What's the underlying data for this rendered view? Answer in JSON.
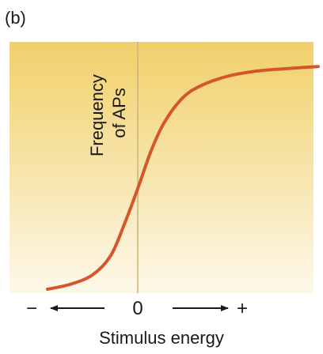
{
  "panel_label": "(b)",
  "colors": {
    "gradient_top": "#f1d06a",
    "gradient_bottom": "#fdf8ea",
    "curve": "#d4562a",
    "zero_line": "#c8b47a",
    "text": "#1a1a1a"
  },
  "chart_data": {
    "type": "line",
    "title": "",
    "xlabel": "Stimulus energy",
    "ylabel": "Frequency of APs",
    "ylabel_lines": [
      "Frequency",
      "of APs"
    ],
    "x_ticks": [
      {
        "label": "−",
        "x": -1.0
      },
      {
        "label": "0",
        "x": 0.0
      },
      {
        "label": "+",
        "x": 1.0
      }
    ],
    "xlim": [
      -1.1,
      2.1
    ],
    "ylim": [
      0,
      1
    ],
    "grid": false,
    "series": [
      {
        "x": [
          -1.0,
          -0.75,
          -0.5,
          -0.3,
          -0.15,
          0.0,
          0.15,
          0.3,
          0.5,
          0.7,
          1.0,
          1.3,
          1.6,
          2.0
        ],
        "y": [
          0.01,
          0.03,
          0.07,
          0.15,
          0.28,
          0.43,
          0.59,
          0.71,
          0.81,
          0.86,
          0.9,
          0.92,
          0.93,
          0.94
        ]
      }
    ]
  }
}
